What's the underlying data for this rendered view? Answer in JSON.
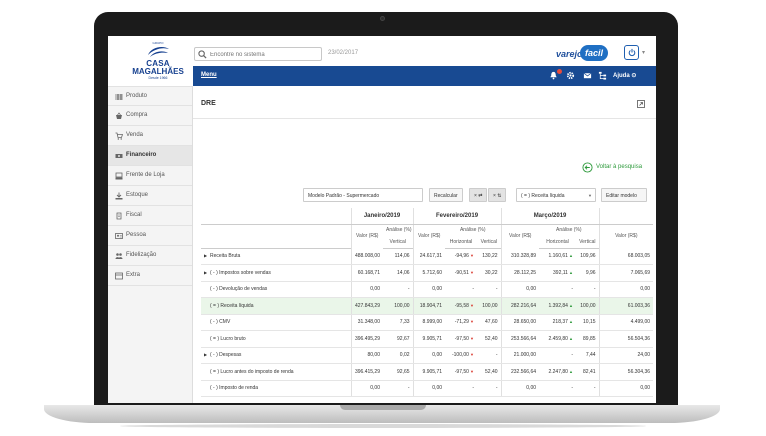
{
  "topbar": {
    "logo": {
      "grupo": "GRUPO",
      "line1": "CASA",
      "line2": "MAGALHÃES",
      "line3": "Desde 1966"
    },
    "search_placeholder": "Encontre no sistema",
    "date": "23/02/2017",
    "brand": {
      "part1": "varejo",
      "part2": "facil"
    }
  },
  "navbar": {
    "menu_label": "Menu",
    "help_label": "Ajuda"
  },
  "sidebar": {
    "items": [
      {
        "label": "Produto",
        "icon": "barcode-icon"
      },
      {
        "label": "Compra",
        "icon": "basket-icon"
      },
      {
        "label": "Venda",
        "icon": "cart-icon"
      },
      {
        "label": "Financeiro",
        "icon": "money-icon",
        "active": true
      },
      {
        "label": "Frente de Loja",
        "icon": "pos-icon"
      },
      {
        "label": "Estoque",
        "icon": "stock-icon"
      },
      {
        "label": "Fiscal",
        "icon": "fiscal-icon"
      },
      {
        "label": "Pessoa",
        "icon": "person-icon"
      },
      {
        "label": "Fidelização",
        "icon": "people-icon"
      },
      {
        "label": "Extra",
        "icon": "extra-icon"
      }
    ]
  },
  "content": {
    "title": "DRE",
    "back_label": "Voltar à pesquisa",
    "model_select": "Modelo Padrão - Supermercado",
    "recalc_label": "Recalcular",
    "toggle1": "× ⇄",
    "toggle2": "× ⇅",
    "indicator_select": "( = ) Receita líquida",
    "edit_model_label": "Editar modelo"
  },
  "table": {
    "months": [
      "Janeiro/2019",
      "Fevereiro/2019",
      "Março/2019"
    ],
    "value_header": "Valor (R$)",
    "analysis_header": "Análise (%)",
    "horizontal_header": "Horizontal",
    "vertical_header": "Vertical",
    "rows": [
      {
        "label": "Receita Bruta",
        "expand": true,
        "hl": false,
        "jan": [
          "488.008,00",
          "114,06"
        ],
        "feb": [
          "24.617,31",
          "-94,96",
          "down",
          "130,22"
        ],
        "mar": [
          "310.328,89",
          "1.160,61",
          "up",
          "109,96"
        ],
        "extra": "68.003,05"
      },
      {
        "label": "( - ) Impostos sobre vendas",
        "expand": true,
        "hl": false,
        "jan": [
          "60.168,71",
          "14,06"
        ],
        "feb": [
          "5.712,60",
          "-90,51",
          "down",
          "30,22"
        ],
        "mar": [
          "28.112,25",
          "392,11",
          "up",
          "9,96"
        ],
        "extra": "7.065,69"
      },
      {
        "label": "( - ) Devolução de vendas",
        "expand": false,
        "hl": false,
        "jan": [
          "0,00",
          "-"
        ],
        "feb": [
          "0,00",
          "-",
          "",
          "-"
        ],
        "mar": [
          "0,00",
          "-",
          "",
          "-"
        ],
        "extra": "0,00"
      },
      {
        "label": "( = ) Receita líquida",
        "expand": false,
        "hl": true,
        "jan": [
          "427.843,29",
          "100,00"
        ],
        "feb": [
          "18.904,71",
          "-95,58",
          "down",
          "100,00"
        ],
        "mar": [
          "282.216,64",
          "1.392,84",
          "up",
          "100,00"
        ],
        "extra": "61.003,36"
      },
      {
        "label": "( - ) CMV",
        "expand": false,
        "hl": false,
        "jan": [
          "31.348,00",
          "7,33"
        ],
        "feb": [
          "8.999,00",
          "-71,29",
          "down",
          "47,60"
        ],
        "mar": [
          "28.650,00",
          "218,37",
          "up",
          "10,15"
        ],
        "extra": "4.499,00"
      },
      {
        "label": "( = ) Lucro bruto",
        "expand": false,
        "hl": false,
        "jan": [
          "396.495,29",
          "92,67"
        ],
        "feb": [
          "9.905,71",
          "-97,50",
          "down",
          "52,40"
        ],
        "mar": [
          "253.566,64",
          "2.459,80",
          "up",
          "89,85"
        ],
        "extra": "56.504,36"
      },
      {
        "label": "( - ) Despesas",
        "expand": true,
        "hl": false,
        "jan": [
          "80,00",
          "0,02"
        ],
        "feb": [
          "0,00",
          "-100,00",
          "down",
          "-"
        ],
        "mar": [
          "21.000,00",
          "-",
          "",
          "7,44"
        ],
        "extra": "24,00"
      },
      {
        "label": "( = ) Lucro antes do imposto de renda",
        "expand": false,
        "hl": false,
        "jan": [
          "396.415,29",
          "92,65"
        ],
        "feb": [
          "9.905,71",
          "-97,50",
          "down",
          "52,40"
        ],
        "mar": [
          "232.566,64",
          "2.247,80",
          "up",
          "82,41"
        ],
        "extra": "56.304,36"
      },
      {
        "label": "( - ) Imposto de renda",
        "expand": false,
        "hl": false,
        "jan": [
          "0,00",
          "-"
        ],
        "feb": [
          "0,00",
          "-",
          "",
          "-"
        ],
        "mar": [
          "0,00",
          "-",
          "",
          "-"
        ],
        "extra": "0,00"
      }
    ]
  }
}
